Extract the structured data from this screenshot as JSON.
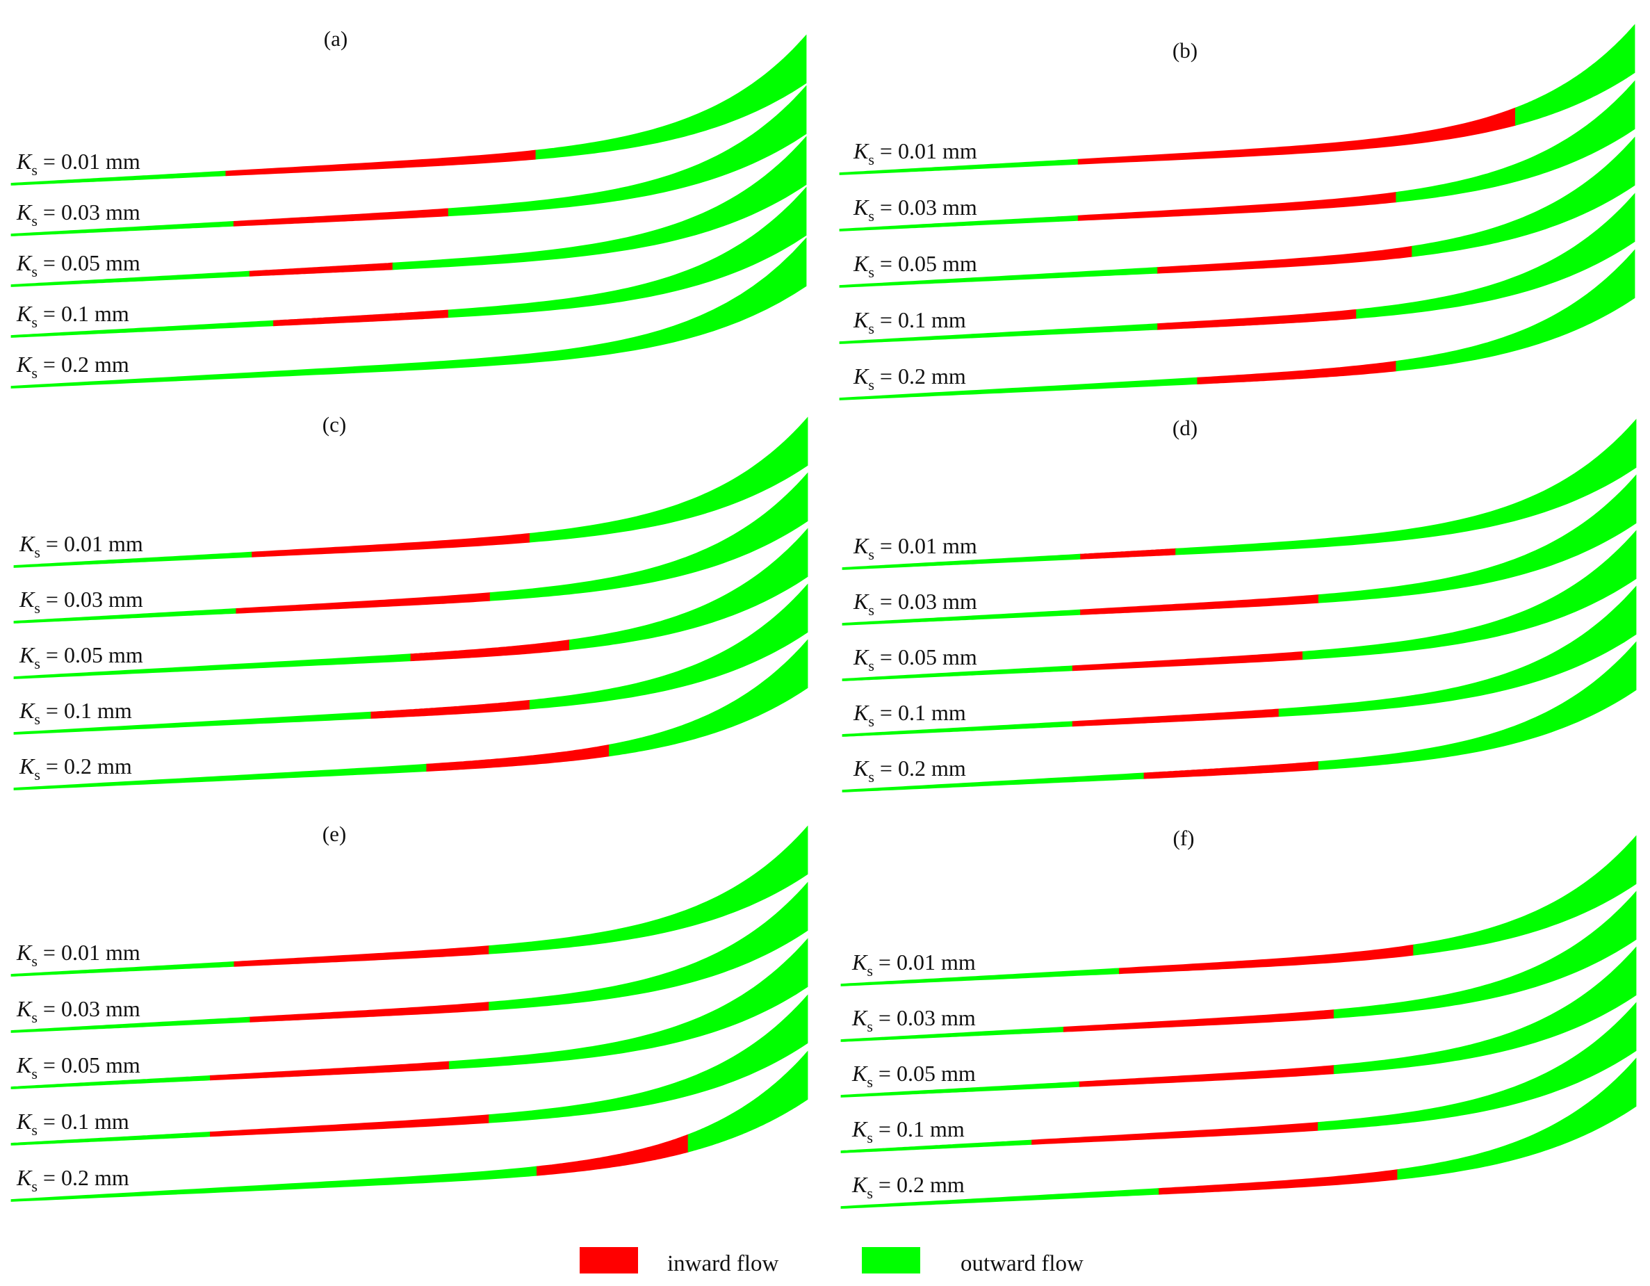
{
  "figure": {
    "panels": [
      {
        "title": "(a)",
        "rows": [
          {
            "label_main": "K",
            "label_sub": "s",
            "label_rest": " = 0.01 mm",
            "pattern": [
              [
                "g",
                0.0,
                0.27
              ],
              [
                "r",
                0.27,
                0.66
              ],
              [
                "g",
                0.66,
                1.0
              ]
            ]
          },
          {
            "label_main": "K",
            "label_sub": "s",
            "label_rest": " = 0.03 mm",
            "pattern": [
              [
                "g",
                0.0,
                0.28
              ],
              [
                "r",
                0.28,
                0.55
              ],
              [
                "g",
                0.55,
                1.0
              ]
            ]
          },
          {
            "label_main": "K",
            "label_sub": "s",
            "label_rest": " = 0.05 mm",
            "pattern": [
              [
                "g",
                0.0,
                0.3
              ],
              [
                "r",
                0.3,
                0.48
              ],
              [
                "g",
                0.48,
                1.0
              ]
            ]
          },
          {
            "label_main": "K",
            "label_sub": "s",
            "label_rest": " = 0.1 mm",
            "pattern": [
              [
                "g",
                0.0,
                0.33
              ],
              [
                "r",
                0.33,
                0.55
              ],
              [
                "g",
                0.55,
                1.0
              ]
            ]
          },
          {
            "label_main": "K",
            "label_sub": "s",
            "label_rest": " = 0.2 mm",
            "pattern": [
              [
                "g",
                0.0,
                1.0
              ]
            ]
          }
        ]
      },
      {
        "title": "(b)",
        "rows": [
          {
            "label_main": "K",
            "label_sub": "s",
            "label_rest": " = 0.01 mm",
            "pattern": [
              [
                "g",
                0.0,
                0.3
              ],
              [
                "r",
                0.3,
                0.85
              ],
              [
                "g",
                0.85,
                1.0
              ]
            ]
          },
          {
            "label_main": "K",
            "label_sub": "s",
            "label_rest": " = 0.03 mm",
            "pattern": [
              [
                "g",
                0.0,
                0.3
              ],
              [
                "r",
                0.3,
                0.7
              ],
              [
                "g",
                0.7,
                1.0
              ]
            ]
          },
          {
            "label_main": "K",
            "label_sub": "s",
            "label_rest": " = 0.05 mm",
            "pattern": [
              [
                "g",
                0.0,
                0.4
              ],
              [
                "r",
                0.4,
                0.72
              ],
              [
                "g",
                0.72,
                1.0
              ]
            ]
          },
          {
            "label_main": "K",
            "label_sub": "s",
            "label_rest": " = 0.1 mm",
            "pattern": [
              [
                "g",
                0.0,
                0.4
              ],
              [
                "r",
                0.4,
                0.65
              ],
              [
                "g",
                0.65,
                1.0
              ]
            ]
          },
          {
            "label_main": "K",
            "label_sub": "s",
            "label_rest": " = 0.2 mm",
            "pattern": [
              [
                "g",
                0.0,
                0.45
              ],
              [
                "r",
                0.45,
                0.7
              ],
              [
                "g",
                0.7,
                1.0
              ]
            ]
          }
        ]
      },
      {
        "title": "(c)",
        "rows": [
          {
            "label_main": "K",
            "label_sub": "s",
            "label_rest": " = 0.01 mm",
            "pattern": [
              [
                "g",
                0.0,
                0.3
              ],
              [
                "r",
                0.3,
                0.65
              ],
              [
                "g",
                0.65,
                1.0
              ]
            ]
          },
          {
            "label_main": "K",
            "label_sub": "s",
            "label_rest": " = 0.03 mm",
            "pattern": [
              [
                "g",
                0.0,
                0.28
              ],
              [
                "r",
                0.28,
                0.6
              ],
              [
                "g",
                0.6,
                1.0
              ]
            ]
          },
          {
            "label_main": "K",
            "label_sub": "s",
            "label_rest": " = 0.05 mm",
            "pattern": [
              [
                "g",
                0.0,
                0.5
              ],
              [
                "r",
                0.5,
                0.7
              ],
              [
                "g",
                0.7,
                1.0
              ]
            ]
          },
          {
            "label_main": "K",
            "label_sub": "s",
            "label_rest": " = 0.1 mm",
            "pattern": [
              [
                "g",
                0.0,
                0.45
              ],
              [
                "r",
                0.45,
                0.65
              ],
              [
                "g",
                0.65,
                1.0
              ]
            ]
          },
          {
            "label_main": "K",
            "label_sub": "s",
            "label_rest": " = 0.2 mm",
            "pattern": [
              [
                "g",
                0.0,
                0.52
              ],
              [
                "r",
                0.52,
                0.75
              ],
              [
                "g",
                0.75,
                1.0
              ]
            ]
          }
        ]
      },
      {
        "title": "(d)",
        "rows": [
          {
            "label_main": "K",
            "label_sub": "s",
            "label_rest": " = 0.01 mm",
            "pattern": [
              [
                "g",
                0.0,
                0.3
              ],
              [
                "r",
                0.3,
                0.42
              ],
              [
                "g",
                0.42,
                1.0
              ]
            ]
          },
          {
            "label_main": "K",
            "label_sub": "s",
            "label_rest": " = 0.03 mm",
            "pattern": [
              [
                "g",
                0.0,
                0.3
              ],
              [
                "r",
                0.3,
                0.6
              ],
              [
                "g",
                0.6,
                1.0
              ]
            ]
          },
          {
            "label_main": "K",
            "label_sub": "s",
            "label_rest": " = 0.05 mm",
            "pattern": [
              [
                "g",
                0.0,
                0.29
              ],
              [
                "r",
                0.29,
                0.58
              ],
              [
                "g",
                0.58,
                1.0
              ]
            ]
          },
          {
            "label_main": "K",
            "label_sub": "s",
            "label_rest": " = 0.1 mm",
            "pattern": [
              [
                "g",
                0.0,
                0.29
              ],
              [
                "r",
                0.29,
                0.55
              ],
              [
                "g",
                0.55,
                1.0
              ]
            ]
          },
          {
            "label_main": "K",
            "label_sub": "s",
            "label_rest": " = 0.2 mm",
            "pattern": [
              [
                "g",
                0.0,
                0.38
              ],
              [
                "r",
                0.38,
                0.6
              ],
              [
                "g",
                0.6,
                1.0
              ]
            ]
          }
        ]
      },
      {
        "title": "(e)",
        "rows": [
          {
            "label_main": "K",
            "label_sub": "s",
            "label_rest": " = 0.01 mm",
            "pattern": [
              [
                "g",
                0.0,
                0.28
              ],
              [
                "r",
                0.28,
                0.6
              ],
              [
                "g",
                0.6,
                1.0
              ]
            ]
          },
          {
            "label_main": "K",
            "label_sub": "s",
            "label_rest": " = 0.03 mm",
            "pattern": [
              [
                "g",
                0.0,
                0.3
              ],
              [
                "r",
                0.3,
                0.6
              ],
              [
                "g",
                0.6,
                1.0
              ]
            ]
          },
          {
            "label_main": "K",
            "label_sub": "s",
            "label_rest": " = 0.05 mm",
            "pattern": [
              [
                "g",
                0.0,
                0.25
              ],
              [
                "r",
                0.25,
                0.55
              ],
              [
                "g",
                0.55,
                1.0
              ]
            ]
          },
          {
            "label_main": "K",
            "label_sub": "s",
            "label_rest": " = 0.1 mm",
            "pattern": [
              [
                "g",
                0.0,
                0.25
              ],
              [
                "r",
                0.25,
                0.6
              ],
              [
                "g",
                0.6,
                1.0
              ]
            ]
          },
          {
            "label_main": "K",
            "label_sub": "s",
            "label_rest": " = 0.2 mm",
            "pattern": [
              [
                "g",
                0.0,
                0.66
              ],
              [
                "r",
                0.66,
                0.85
              ],
              [
                "g",
                0.85,
                1.0
              ]
            ]
          }
        ]
      },
      {
        "title": "(f)",
        "rows": [
          {
            "label_main": "K",
            "label_sub": "s",
            "label_rest": " = 0.01 mm",
            "pattern": [
              [
                "g",
                0.0,
                0.35
              ],
              [
                "r",
                0.35,
                0.72
              ],
              [
                "g",
                0.72,
                1.0
              ]
            ]
          },
          {
            "label_main": "K",
            "label_sub": "s",
            "label_rest": " = 0.03 mm",
            "pattern": [
              [
                "g",
                0.0,
                0.28
              ],
              [
                "r",
                0.28,
                0.62
              ],
              [
                "g",
                0.62,
                1.0
              ]
            ]
          },
          {
            "label_main": "K",
            "label_sub": "s",
            "label_rest": " = 0.05 mm",
            "pattern": [
              [
                "g",
                0.0,
                0.3
              ],
              [
                "r",
                0.3,
                0.62
              ],
              [
                "g",
                0.62,
                1.0
              ]
            ]
          },
          {
            "label_main": "K",
            "label_sub": "s",
            "label_rest": " = 0.1 mm",
            "pattern": [
              [
                "g",
                0.0,
                0.24
              ],
              [
                "r",
                0.24,
                0.6
              ],
              [
                "g",
                0.6,
                1.0
              ]
            ]
          },
          {
            "label_main": "K",
            "label_sub": "s",
            "label_rest": " = 0.2 mm",
            "pattern": [
              [
                "g",
                0.0,
                0.4
              ],
              [
                "r",
                0.4,
                0.7
              ],
              [
                "g",
                0.7,
                1.0
              ]
            ]
          }
        ]
      }
    ],
    "legend": {
      "inward": {
        "label": "inward flow",
        "color": "#ff0000"
      },
      "outward": {
        "label": "outward flow",
        "color": "#00ff00"
      }
    }
  }
}
